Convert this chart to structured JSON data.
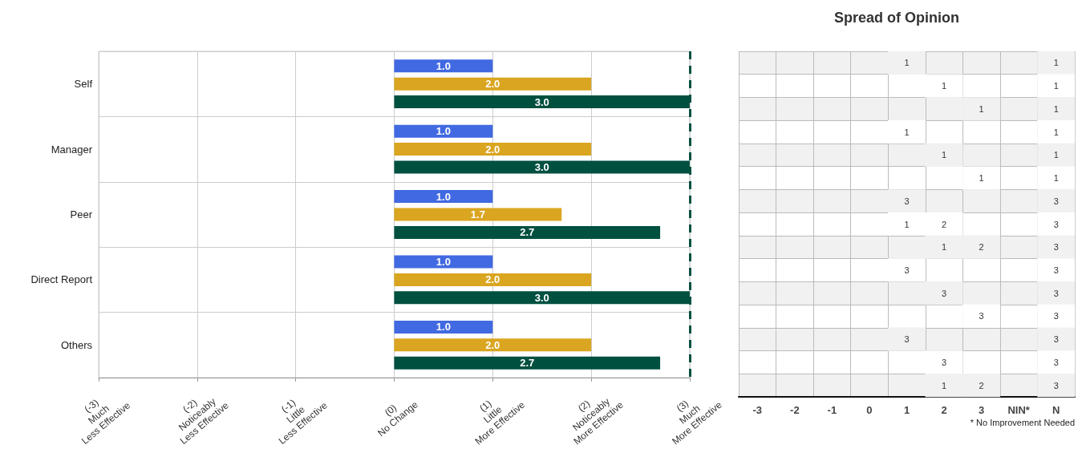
{
  "chart_data": [
    {
      "type": "bar",
      "orientation": "horizontal",
      "categories": [
        "Self",
        "Manager",
        "Peer",
        "Direct Report",
        "Others"
      ],
      "series": [
        {
          "color": "#4169e1",
          "values": [
            1.0,
            1.0,
            1.0,
            1.0,
            1.0
          ],
          "value_labels": [
            "1.0",
            "1.0",
            "1.0",
            "1.0",
            "1.0"
          ]
        },
        {
          "color": "#daa520",
          "values": [
            2.0,
            2.0,
            1.7,
            2.0,
            2.0
          ],
          "value_labels": [
            "2.0",
            "2.0",
            "1.7",
            "2.0",
            "2.0"
          ]
        },
        {
          "color": "#005040",
          "values": [
            3.0,
            3.0,
            2.7,
            3.0,
            2.7
          ],
          "value_labels": [
            "3.0",
            "3.0",
            "2.7",
            "3.0",
            "2.7"
          ]
        }
      ],
      "xlim": [
        -3,
        3
      ],
      "xticks": [
        {
          "value": -3,
          "label": "(-3)\nMuch\nLess Effective"
        },
        {
          "value": -2,
          "label": "(-2)\nNoticeably\nLess Effective"
        },
        {
          "value": -1,
          "label": "(-1)\nLittle\nLess Effective"
        },
        {
          "value": 0,
          "label": "(0)\nNo Change"
        },
        {
          "value": 1,
          "label": "(1)\nLittle\nMore Effective"
        },
        {
          "value": 2,
          "label": "(2)\nNoticeably\nMore Effective"
        },
        {
          "value": 3,
          "label": "(3)\nMuch\nMore Effective"
        }
      ],
      "grid": true,
      "ref_lines": [
        {
          "axis": "x",
          "value": 3,
          "color": "#005040",
          "line_style": "dashed"
        }
      ]
    },
    {
      "type": "heatmap",
      "title": "Spread of Opinion",
      "categories": [
        "-3",
        "-2",
        "-1",
        "0",
        "1",
        "2",
        "3",
        "NIN*",
        "N"
      ],
      "y_categories": [
        null,
        null,
        null,
        null,
        null,
        null,
        null,
        null,
        null,
        null,
        null,
        null,
        null,
        null,
        null
      ],
      "cells": [
        [
          null,
          null,
          null,
          null,
          1,
          null,
          null,
          null,
          1
        ],
        [
          null,
          null,
          null,
          null,
          null,
          1,
          null,
          null,
          1
        ],
        [
          null,
          null,
          null,
          null,
          null,
          null,
          1,
          null,
          1
        ],
        [
          null,
          null,
          null,
          null,
          1,
          null,
          null,
          null,
          1
        ],
        [
          null,
          null,
          null,
          null,
          null,
          1,
          null,
          null,
          1
        ],
        [
          null,
          null,
          null,
          null,
          null,
          null,
          1,
          null,
          1
        ],
        [
          null,
          null,
          null,
          null,
          3,
          null,
          null,
          null,
          3
        ],
        [
          null,
          null,
          null,
          null,
          1,
          2,
          null,
          null,
          3
        ],
        [
          null,
          null,
          null,
          null,
          null,
          1,
          2,
          null,
          3
        ],
        [
          null,
          null,
          null,
          null,
          3,
          null,
          null,
          null,
          3
        ],
        [
          null,
          null,
          null,
          null,
          null,
          3,
          null,
          null,
          3
        ],
        [
          null,
          null,
          null,
          null,
          null,
          null,
          3,
          null,
          3
        ],
        [
          null,
          null,
          null,
          null,
          3,
          null,
          null,
          null,
          3
        ],
        [
          null,
          null,
          null,
          null,
          null,
          3,
          null,
          null,
          3
        ],
        [
          null,
          null,
          null,
          null,
          null,
          1,
          2,
          null,
          3
        ]
      ],
      "grid": true,
      "data_labels": true,
      "annotations": [
        "* No Improvement Needed"
      ]
    }
  ]
}
